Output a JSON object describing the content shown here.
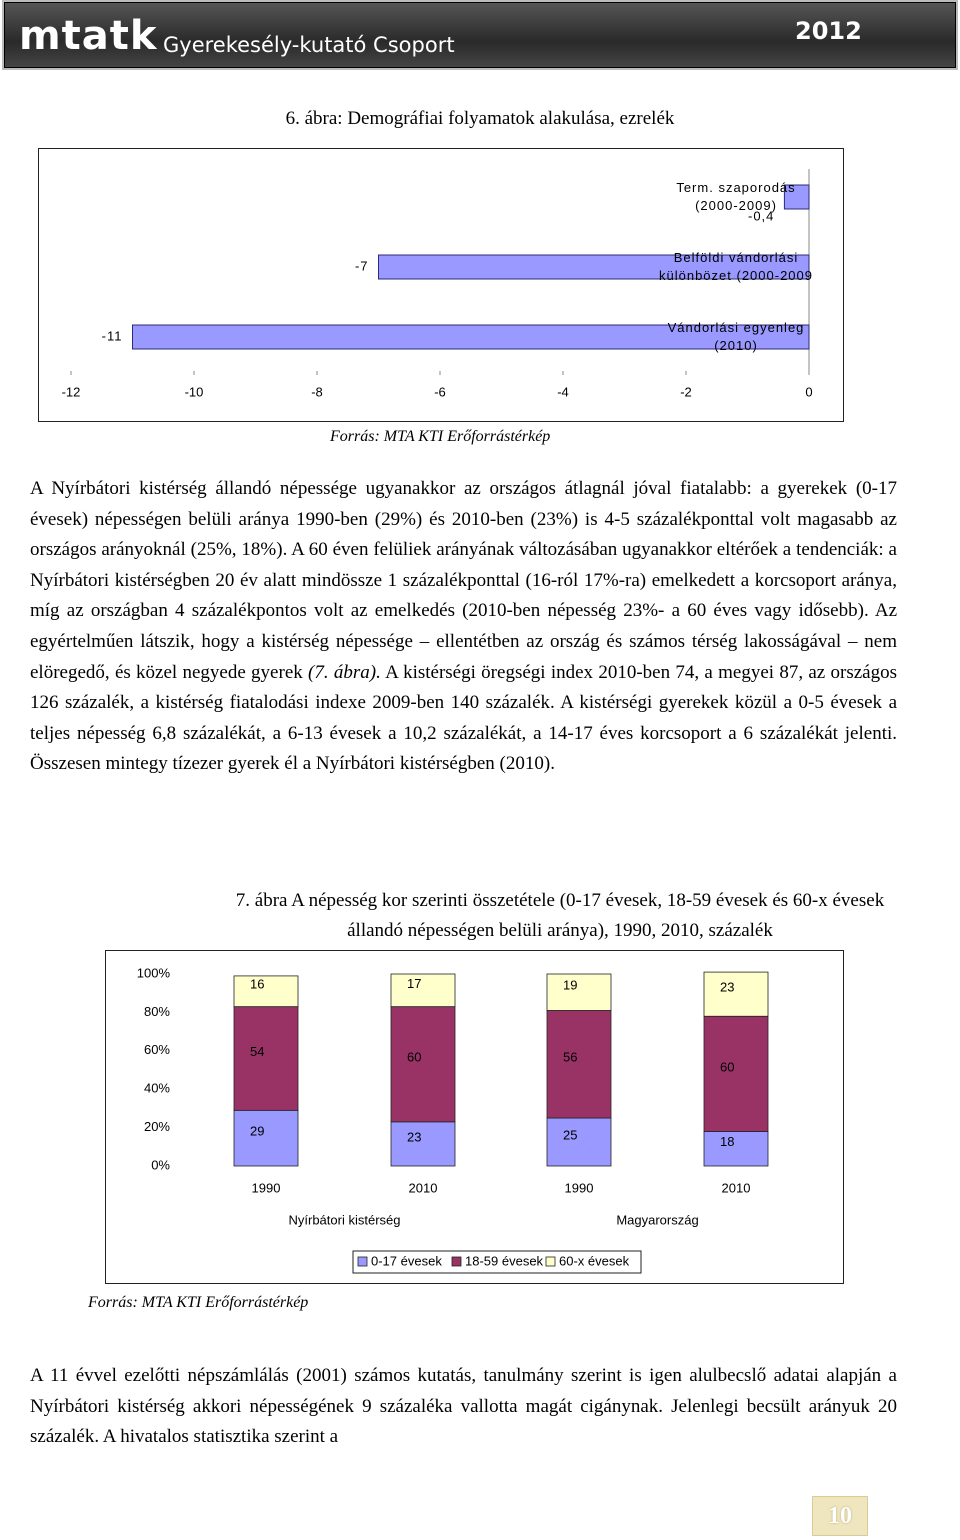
{
  "header": {
    "logo": "mtatk",
    "group": "Gyerekesély-kutató Csoport",
    "year": "2012"
  },
  "chart_data": [
    {
      "type": "bar",
      "horizontal": true,
      "title": "6. ábra: Demográfiai folyamatok alakulása, ezrelék",
      "categories": [
        "Term. szaporodás (2000-2009)",
        "Belföldi vándorlási különbözet (2000-2009",
        "Vándorlási egyenleg (2010)"
      ],
      "values": [
        -0.4,
        -7,
        -11
      ],
      "value_labels": [
        "-0,4",
        "-7",
        "-11"
      ],
      "color": "#9999ff",
      "xlim": [
        -12,
        0
      ],
      "xticks": [
        -12,
        -10,
        -8,
        -6,
        -4,
        -2,
        0
      ],
      "source": "Forrás: MTA KTI Erőforrástérkép"
    },
    {
      "type": "stacked_bar",
      "title": "7. ábra A népesség kor szerinti összetétele (0-17 évesek, 18-59 évesek és 60-x évesek állandó népességen belüli aránya), 1990, 2010, százalék",
      "categories": [
        "1990",
        "2010",
        "1990",
        "2010"
      ],
      "groups": [
        "Nyírbátori kistérség",
        "Magyarország"
      ],
      "series": [
        {
          "name": "0-17 évesek",
          "color": "#9999ff",
          "values": [
            29,
            23,
            25,
            18
          ]
        },
        {
          "name": "18-59 évesek",
          "color": "#993366",
          "values": [
            54,
            60,
            56,
            60
          ]
        },
        {
          "name": "60-x évesek",
          "color": "#ffffcc",
          "values": [
            16,
            17,
            19,
            23
          ]
        }
      ],
      "ylim": [
        0,
        100
      ],
      "yticks": [
        {
          "value": 0,
          "label": "0%"
        },
        {
          "value": 20,
          "label": "20%"
        },
        {
          "value": 40,
          "label": "40%"
        },
        {
          "value": 60,
          "label": "60%"
        },
        {
          "value": 80,
          "label": "80%"
        },
        {
          "value": 100,
          "label": "100%"
        }
      ],
      "legend": "bottom",
      "source": "Forrás: MTA KTI Erőforrástérkép"
    }
  ],
  "paragraph1": [
    "A Nyírbátori kistérség állandó népessége ugyanakkor az országos átlagnál jóval fiatalabb: a gyerekek (0-17 évesek) népességen belüli aránya 1990-ben (29%) és 2010-ben (23%) is 4-5 százalékponttal volt magasabb az országos arányoknál (25%, 18%). A 60 éven felüliek arányának változásában ugyanakkor eltérőek a tendenciák: a Nyírbátori kistérségben 20 év alatt mindössze 1 százalékponttal (16-ról 17%-ra) emelkedett a korcsoport aránya, míg az országban 4 százalékpontos volt az emelkedés (2010-ben népesség 23%- a 60 éves vagy idősebb). Az egyértelműen látszik, hogy a kistérség népessége – ellentétben az ország és számos térség lakosságával – nem elöregedő, és közel negyede gyerek ",
    "(7. ábra).",
    " A kistérségi öregségi index 2010-ben 74, a megyei 87, az országos 126 százalék, a kistérség fiatalodási indexe 2009-ben 140 százalék. A kistérségi gyerekek közül a 0-5 évesek a teljes népesség 6,8 százalékát, a 6-13 évesek a 10,2 százalékát, a 14-17 éves korcsoport a 6 százalékát jelenti. Összesen mintegy tízezer gyerek él a Nyírbátori kistérségben (2010)."
  ],
  "paragraph2": "A 11 évvel ezelőtti népszámlálás (2001) számos kutatás, tanulmány szerint is igen alulbecslő adatai alapján a Nyírbátori kistérség akkori népességének 9 százaléka vallotta magát cigánynak. Jelenlegi becsült arányuk 20 százalék. A hivatalos statisztika szerint a",
  "page_number": "10"
}
